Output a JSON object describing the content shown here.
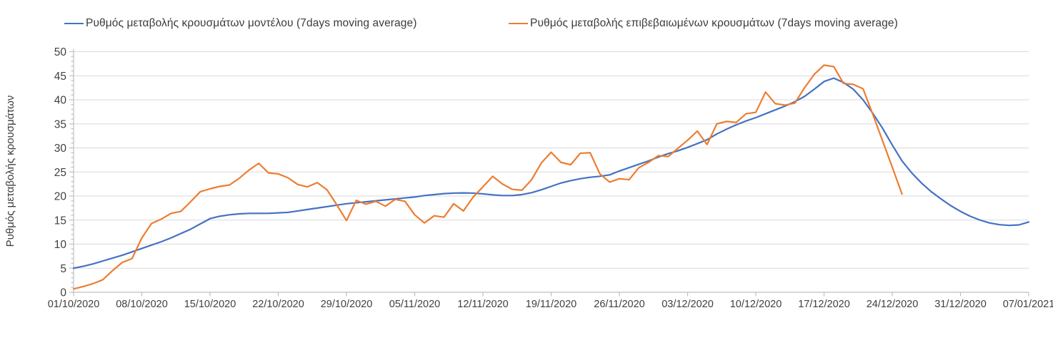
{
  "chart_data": {
    "type": "line",
    "title": "",
    "ylabel": "Ρυθμός μεταβολής κρουσμάτων",
    "xlabel": "",
    "ylim": [
      0,
      50
    ],
    "y_tick_step": 5,
    "y_minor_tick_step": 1,
    "grid": "horizontal",
    "legend_position": "top",
    "x_total_days": 98,
    "x_tick_days": [
      0,
      7,
      14,
      21,
      28,
      35,
      42,
      49,
      56,
      63,
      70,
      77,
      84,
      91,
      98
    ],
    "x_tick_labels": [
      "01/10/2020",
      "08/10/2020",
      "15/10/2020",
      "22/10/2020",
      "29/10/2020",
      "05/11/2020",
      "12/11/2020",
      "19/11/2020",
      "26/11/2020",
      "03/12/2020",
      "10/12/2020",
      "17/12/2020",
      "24/12/2020",
      "31/12/2020",
      "07/01/2021"
    ],
    "axis_color": "#bfbfbf",
    "gridline_color": "#d9d9d9",
    "tick_label_color": "#404040",
    "series": [
      {
        "name": "Ρυθμός μεταβολής κρουσμάτων μοντέλου (7days moving average)",
        "color": "#4472c4",
        "start_day": 0,
        "values": [
          5.0,
          5.4,
          5.9,
          6.5,
          7.1,
          7.7,
          8.4,
          9.1,
          9.8,
          10.5,
          11.3,
          12.2,
          13.1,
          14.2,
          15.3,
          15.8,
          16.1,
          16.3,
          16.4,
          16.4,
          16.4,
          16.5,
          16.6,
          16.9,
          17.2,
          17.5,
          17.8,
          18.1,
          18.4,
          18.6,
          18.8,
          19.0,
          19.2,
          19.4,
          19.6,
          19.8,
          20.1,
          20.3,
          20.5,
          20.6,
          20.65,
          20.6,
          20.45,
          20.25,
          20.1,
          20.1,
          20.3,
          20.7,
          21.3,
          22.0,
          22.7,
          23.2,
          23.6,
          23.9,
          24.1,
          24.4,
          25.2,
          25.9,
          26.6,
          27.3,
          28.1,
          28.8,
          29.4,
          30.1,
          30.9,
          31.7,
          32.9,
          33.9,
          34.8,
          35.6,
          36.3,
          37.1,
          37.9,
          38.7,
          39.6,
          40.7,
          42.2,
          43.8,
          44.5,
          43.6,
          42.2,
          40.0,
          37.2,
          34.1,
          30.6,
          27.3,
          24.8,
          22.7,
          20.9,
          19.4,
          18.0,
          16.8,
          15.8,
          15.0,
          14.4,
          14.05,
          13.9,
          14.0,
          14.6
        ]
      },
      {
        "name": "Ρυθμός μεταβολής επιβεβαιωμένων κρουσμάτων (7days moving average)",
        "color": "#ed7d31",
        "start_day": 0,
        "values": [
          0.7,
          1.2,
          1.8,
          2.6,
          4.5,
          6.2,
          7.0,
          11.3,
          14.3,
          15.2,
          16.4,
          16.8,
          18.8,
          20.9,
          21.5,
          22.0,
          22.3,
          23.7,
          25.4,
          26.8,
          24.8,
          24.6,
          23.8,
          22.4,
          21.9,
          22.8,
          21.3,
          18.2,
          14.9,
          19.1,
          18.3,
          18.9,
          17.9,
          19.3,
          18.9,
          16.1,
          14.4,
          15.9,
          15.6,
          18.4,
          16.9,
          19.8,
          21.9,
          24.1,
          22.5,
          21.4,
          21.2,
          23.4,
          26.9,
          29.1,
          27.0,
          26.5,
          28.9,
          29.0,
          24.6,
          22.9,
          23.6,
          23.4,
          25.9,
          27.0,
          28.4,
          28.2,
          29.9,
          31.6,
          33.5,
          30.7,
          35.0,
          35.5,
          35.3,
          37.1,
          37.4,
          41.6,
          39.2,
          38.9,
          39.3,
          42.5,
          45.3,
          47.2,
          46.9,
          43.4,
          43.2,
          42.3,
          37.0,
          31.5,
          26.0,
          20.4
        ]
      }
    ]
  }
}
